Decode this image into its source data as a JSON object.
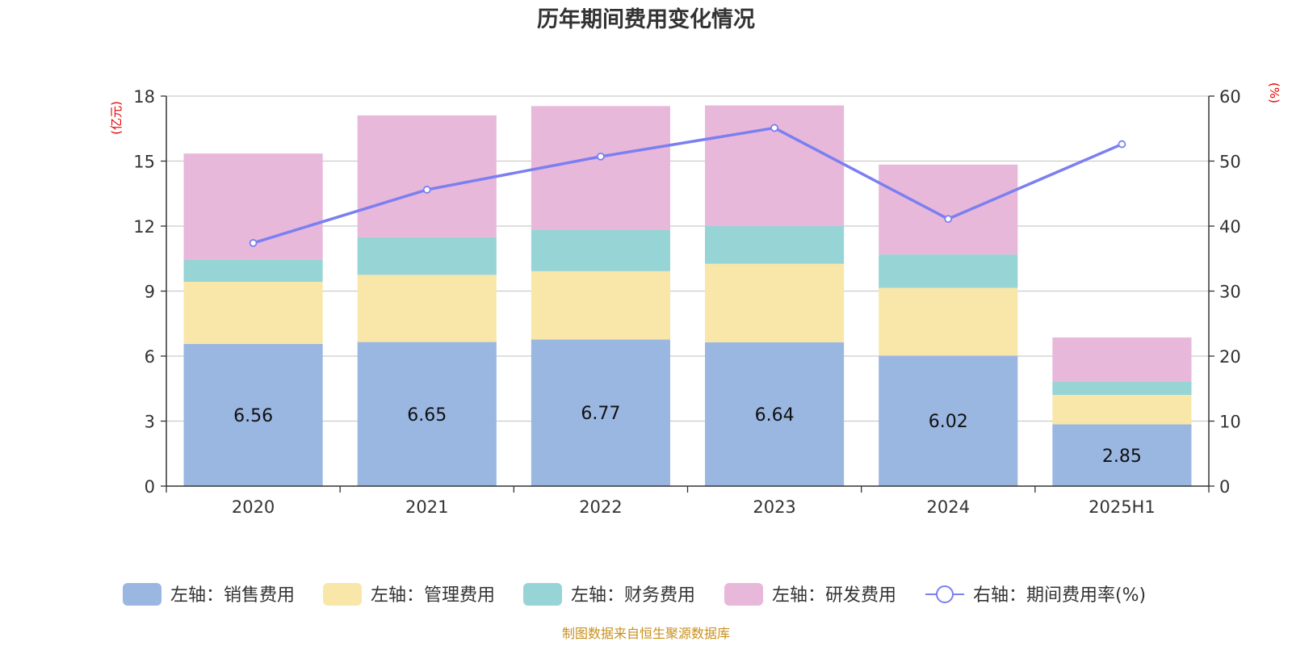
{
  "chart_data": {
    "type": "bar",
    "title": "历年期间费用变化情况",
    "categories": [
      "2020",
      "2021",
      "2022",
      "2023",
      "2024",
      "2025H1"
    ],
    "left_axis": {
      "unit": "(亿元)",
      "min": 0,
      "max": 18,
      "ticks": [
        0,
        3,
        6,
        9,
        12,
        15,
        18
      ]
    },
    "right_axis": {
      "unit": "(%)",
      "min": 0,
      "max": 60,
      "ticks": [
        0,
        10,
        20,
        30,
        40,
        50,
        60
      ]
    },
    "series": [
      {
        "name": "左轴：销售费用",
        "type": "bar",
        "axis": "left",
        "color": "#9ab7e2",
        "values": [
          6.56,
          6.65,
          6.77,
          6.64,
          6.02,
          2.85
        ],
        "labels": [
          "6.56",
          "6.65",
          "6.77",
          "6.64",
          "6.02",
          "2.85"
        ]
      },
      {
        "name": "左轴：管理费用",
        "type": "bar",
        "axis": "left",
        "color": "#f8e7a8",
        "values": [
          2.87,
          3.1,
          3.15,
          3.62,
          3.13,
          1.36
        ]
      },
      {
        "name": "左轴：财务费用",
        "type": "bar",
        "axis": "left",
        "color": "#97d4d5",
        "values": [
          1.02,
          1.73,
          1.91,
          1.74,
          1.54,
          0.62
        ]
      },
      {
        "name": "左轴：研发费用",
        "type": "bar",
        "axis": "left",
        "color": "#e8b8da",
        "values": [
          4.9,
          5.63,
          5.71,
          5.57,
          4.15,
          2.03
        ]
      },
      {
        "name": "右轴：期间费用率(%)",
        "type": "line",
        "axis": "right",
        "color": "#7b7ff0",
        "values": [
          37.4,
          45.6,
          50.7,
          55.1,
          41.1,
          52.6
        ]
      }
    ],
    "grid": true,
    "legend_position": "bottom",
    "source": "制图数据来自恒生聚源数据库"
  }
}
